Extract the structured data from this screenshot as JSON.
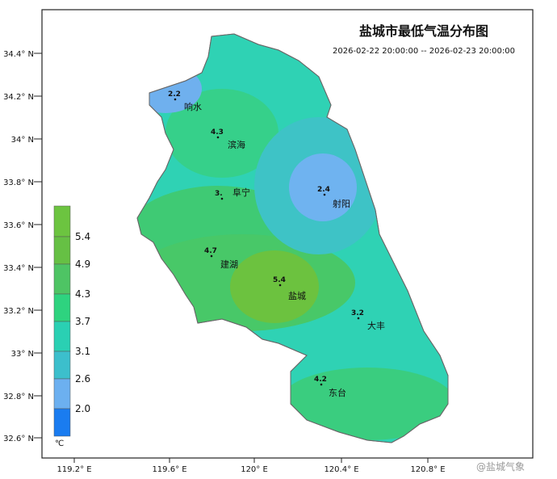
{
  "title": "盐城市最低气温分布图",
  "subtitle": "2026-02-22 20:00:00 -- 2026-02-23 20:00:00",
  "lat_ticks": [
    "34.4° N",
    "34.2° N",
    "34° N",
    "33.8° N",
    "33.6° N",
    "33.4° N",
    "33.2° N",
    "33° N",
    "32.8° N",
    "32.6° N"
  ],
  "lon_ticks": [
    "119.2° E",
    "119.6° E",
    "120° E",
    "120.4° E",
    "120.8° E"
  ],
  "legend": {
    "unit": "℃",
    "levels": [
      "5.4",
      "4.9",
      "4.3",
      "3.7",
      "3.1",
      "2.6",
      "2.0"
    ]
  },
  "stations": [
    {
      "name": "响水",
      "value": "2.2"
    },
    {
      "name": "滨海",
      "value": "4.3"
    },
    {
      "name": "阜宁",
      "value": "3."
    },
    {
      "name": "射阳",
      "value": "2.4"
    },
    {
      "name": "建湖",
      "value": "4.7"
    },
    {
      "name": "盐城",
      "value": "5.4"
    },
    {
      "name": "大丰",
      "value": "3.2"
    },
    {
      "name": "东台",
      "value": "4.2"
    }
  ],
  "watermark": "@盐城气象"
}
